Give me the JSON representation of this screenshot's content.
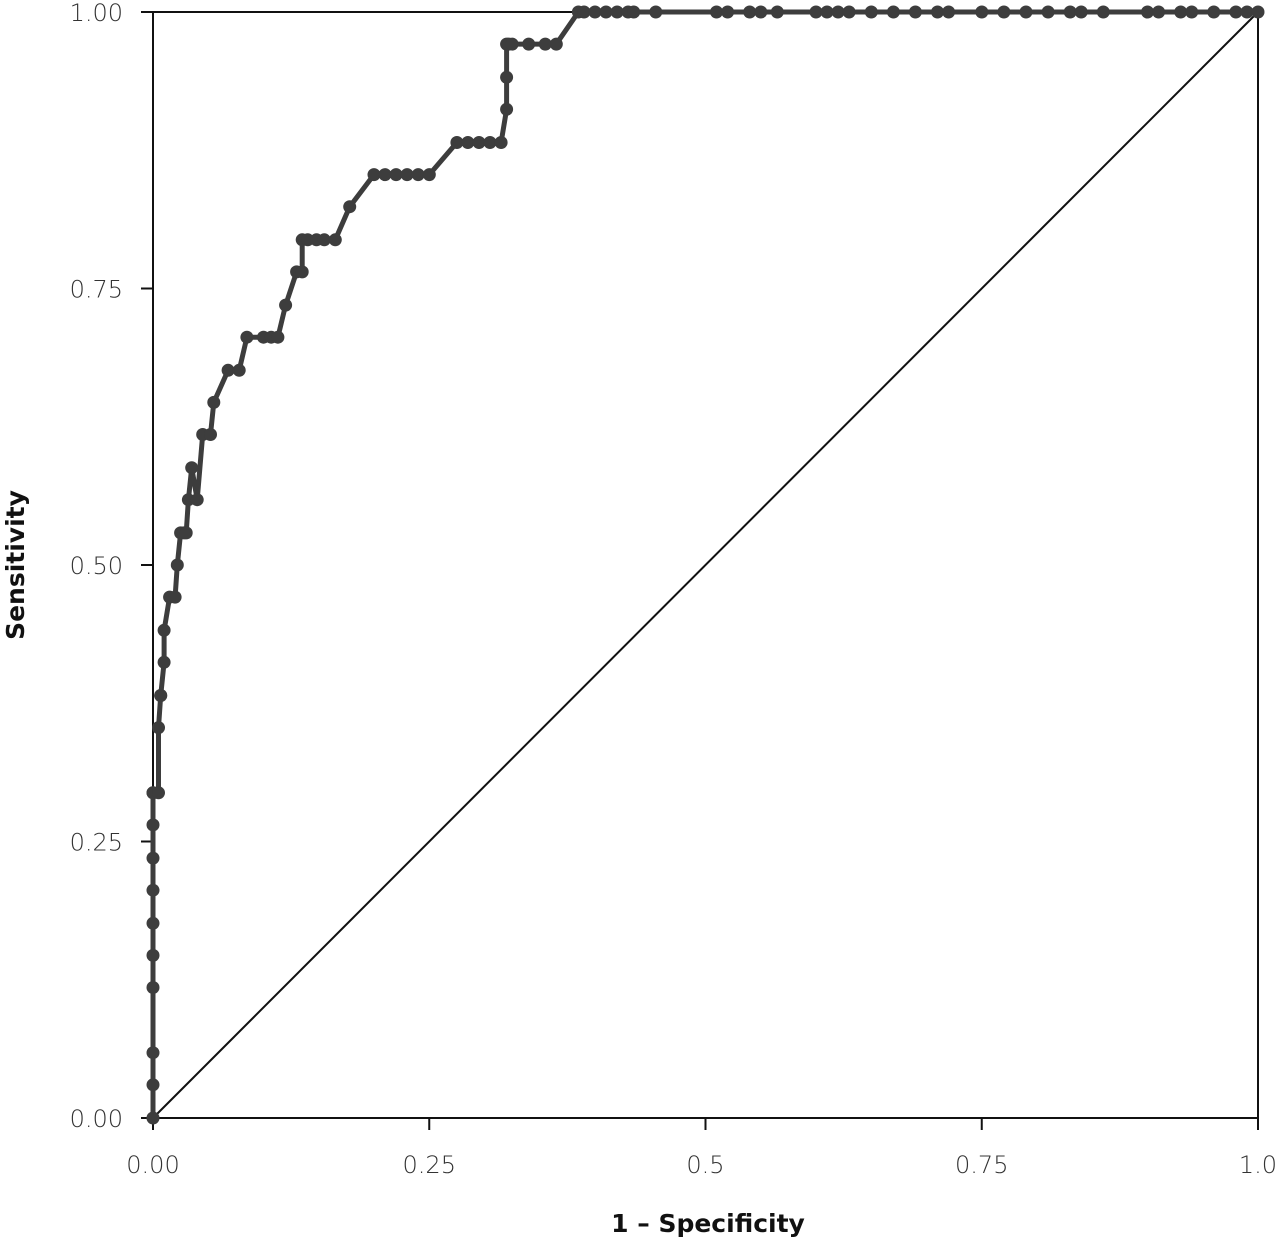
{
  "chart_data": {
    "type": "line",
    "title": "",
    "xlabel": "1 – Specificity",
    "ylabel": "Sensitivity",
    "xlim": [
      0,
      1
    ],
    "ylim": [
      0,
      1
    ],
    "grid": false,
    "x_ticks": [
      "0.00",
      "0.25",
      "0.5",
      "0.75",
      "1.0"
    ],
    "y_ticks": [
      "0.00",
      "0.25",
      "0.50",
      "0.75",
      "1.00"
    ],
    "colors": {
      "series": "#3d3d3d",
      "reference": "#111111",
      "axis": "#111111"
    },
    "reference_line": {
      "x": [
        0,
        1
      ],
      "y": [
        0,
        1
      ]
    },
    "series": [
      {
        "x": [
          0,
          0,
          0,
          0,
          0,
          0,
          0,
          0,
          0,
          0,
          0,
          0.005,
          0.005,
          0.007,
          0.007,
          0.01,
          0.01,
          0.015,
          0.02,
          0.022,
          0.025,
          0.028,
          0.03,
          0.032,
          0.035,
          0.04,
          0.045,
          0.052,
          0.055,
          0.068,
          0.078,
          0.085,
          0.1,
          0.107,
          0.113,
          0.12,
          0.13,
          0.135,
          0.135,
          0.14,
          0.148,
          0.155,
          0.165,
          0.178,
          0.2,
          0.21,
          0.22,
          0.23,
          0.24,
          0.25,
          0.275,
          0.285,
          0.295,
          0.305,
          0.315,
          0.32,
          0.32,
          0.32,
          0.322,
          0.325,
          0.34,
          0.355,
          0.365,
          0.385,
          0.39,
          0.4,
          0.41,
          0.42,
          0.43,
          0.435,
          0.455,
          0.51,
          0.52,
          0.54,
          0.55,
          0.565,
          0.6,
          0.61,
          0.62,
          0.63,
          0.65,
          0.67,
          0.69,
          0.71,
          0.72,
          0.75,
          0.77,
          0.79,
          0.81,
          0.83,
          0.84,
          0.86,
          0.9,
          0.91,
          0.93,
          0.94,
          0.96,
          0.98,
          0.99,
          1.0
        ],
        "y": [
          0,
          0.03,
          0.059,
          0.118,
          0.147,
          0.176,
          0.206,
          0.235,
          0.265,
          0.294,
          0.294,
          0.294,
          0.353,
          0.382,
          0.382,
          0.412,
          0.441,
          0.471,
          0.471,
          0.5,
          0.529,
          0.529,
          0.529,
          0.559,
          0.588,
          0.559,
          0.618,
          0.618,
          0.647,
          0.676,
          0.676,
          0.706,
          0.706,
          0.706,
          0.706,
          0.735,
          0.765,
          0.765,
          0.794,
          0.794,
          0.794,
          0.794,
          0.794,
          0.824,
          0.853,
          0.853,
          0.853,
          0.853,
          0.853,
          0.853,
          0.882,
          0.882,
          0.882,
          0.882,
          0.882,
          0.912,
          0.941,
          0.971,
          0.971,
          0.971,
          0.971,
          0.971,
          0.971,
          1,
          1,
          1,
          1,
          1,
          1,
          1,
          1,
          1,
          1,
          1,
          1,
          1,
          1,
          1,
          1,
          1,
          1,
          1,
          1,
          1,
          1,
          1,
          1,
          1,
          1,
          1,
          1,
          1,
          1,
          1,
          1,
          1,
          1,
          1,
          1,
          1
        ]
      }
    ]
  }
}
